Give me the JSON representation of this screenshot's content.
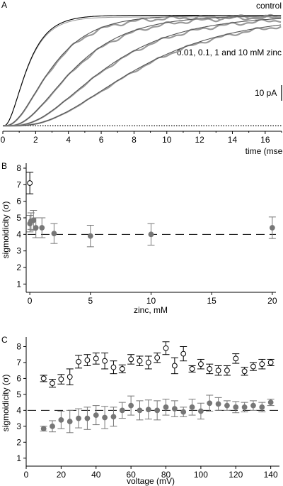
{
  "panels": {
    "a": {
      "letter": "A",
      "label_control": "control",
      "label_zinc": "0.01, 0.1, 1 and 10 mM zinc",
      "scale_label": "10 pA",
      "scale_pA": 10
    },
    "b": {
      "letter": "B"
    },
    "c": {
      "letter": "C"
    }
  },
  "chart_data": [
    {
      "type": "line",
      "panel": "A",
      "xlabel": "time (msec)",
      "xlim": [
        0,
        17
      ],
      "xticks": [
        0,
        2,
        4,
        6,
        8,
        10,
        12,
        14,
        16
      ],
      "ylim": [
        -0.05,
        1.1
      ],
      "grid": false,
      "y_axis_shown": false,
      "baseline_dotted": 0,
      "traces_normalized": [
        {
          "name": "control",
          "delay": 0.05,
          "tau": 1.0,
          "power": 2.4,
          "color": "#000000"
        },
        {
          "name": "0.01 mM zinc",
          "delay": 0.1,
          "tau": 1.9,
          "power": 2.6,
          "color": "#555555"
        },
        {
          "name": "0.1 mM zinc",
          "delay": 0.3,
          "tau": 2.6,
          "power": 2.8,
          "color": "#555555"
        },
        {
          "name": "1 mM zinc",
          "delay": 0.4,
          "tau": 3.6,
          "power": 3.0,
          "color": "#555555"
        },
        {
          "name": "10 mM zinc",
          "delay": 0.5,
          "tau": 4.6,
          "power": 3.2,
          "color": "#555555"
        }
      ]
    },
    {
      "type": "scatter",
      "panel": "B",
      "xlabel": "zinc, mM",
      "ylabel": "sigmoidicity (σ)",
      "xlim": [
        -0.3,
        20.3
      ],
      "ylim": [
        0.5,
        8.3
      ],
      "xticks": [
        0,
        5,
        10,
        15,
        20
      ],
      "yticks": [
        1,
        2,
        3,
        4,
        5,
        6,
        7,
        8
      ],
      "grid": false,
      "reference_line": 4,
      "series": [
        {
          "marker": "open",
          "color": "#000000",
          "x": [
            0
          ],
          "y": [
            7.1
          ],
          "err": [
            0.65
          ]
        },
        {
          "marker": "filled",
          "color": "#777777",
          "x": [
            0.01,
            0.1,
            0.3,
            0.5,
            1,
            2,
            5,
            10,
            20
          ],
          "y": [
            4.65,
            4.8,
            4.85,
            4.4,
            4.4,
            4.05,
            3.9,
            4.0,
            4.4
          ],
          "err": [
            0.5,
            0.5,
            0.6,
            0.6,
            0.6,
            0.6,
            0.65,
            0.65,
            0.65
          ]
        }
      ]
    },
    {
      "type": "scatter",
      "panel": "C",
      "xlabel": "voltage (mV)",
      "ylabel": "sigmoidicity (σ)",
      "xlim": [
        0,
        145
      ],
      "ylim": [
        0.5,
        8.6
      ],
      "xticks": [
        0,
        20,
        40,
        60,
        80,
        100,
        120,
        140
      ],
      "yticks": [
        1,
        2,
        3,
        4,
        5,
        6,
        7,
        8
      ],
      "grid": false,
      "reference_line": 4,
      "series": [
        {
          "marker": "open",
          "color": "#000000",
          "x": [
            10,
            15,
            20,
            25,
            30,
            35,
            40,
            45,
            50,
            55,
            60,
            65,
            70,
            75,
            80,
            85,
            90,
            95,
            100,
            105,
            110,
            115,
            120,
            125,
            130,
            135,
            140
          ],
          "y": [
            6.0,
            5.7,
            5.95,
            6.1,
            7.05,
            7.15,
            7.25,
            7.1,
            6.7,
            6.6,
            7.2,
            7.1,
            7.0,
            7.3,
            7.9,
            6.8,
            7.55,
            6.6,
            6.9,
            6.6,
            6.5,
            6.5,
            7.25,
            6.45,
            6.75,
            6.9,
            7.0
          ],
          "err": [
            0.2,
            0.25,
            0.3,
            0.5,
            0.4,
            0.35,
            0.35,
            0.5,
            0.4,
            0.25,
            0.3,
            0.3,
            0.4,
            0.3,
            0.4,
            0.5,
            0.45,
            0.2,
            0.3,
            0.3,
            0.3,
            0.3,
            0.3,
            0.25,
            0.25,
            0.3,
            0.2
          ]
        },
        {
          "marker": "filled",
          "color": "#777777",
          "x": [
            10,
            15,
            20,
            25,
            30,
            35,
            40,
            45,
            50,
            55,
            60,
            65,
            70,
            75,
            80,
            85,
            90,
            95,
            100,
            105,
            110,
            115,
            120,
            125,
            130,
            135,
            140
          ],
          "y": [
            2.85,
            3.0,
            3.4,
            3.3,
            3.5,
            3.5,
            3.7,
            3.55,
            3.6,
            4.0,
            4.3,
            4.0,
            4.05,
            4.0,
            4.2,
            4.1,
            3.9,
            4.2,
            3.95,
            4.45,
            4.4,
            4.3,
            4.2,
            4.2,
            4.3,
            4.2,
            4.5
          ],
          "err": [
            0.15,
            0.35,
            0.55,
            0.7,
            0.6,
            0.7,
            0.6,
            0.7,
            0.6,
            0.5,
            0.6,
            0.6,
            0.6,
            0.6,
            0.5,
            0.5,
            0.3,
            0.5,
            0.5,
            0.5,
            0.4,
            0.3,
            0.35,
            0.3,
            0.3,
            0.3,
            0.2
          ]
        }
      ]
    }
  ]
}
